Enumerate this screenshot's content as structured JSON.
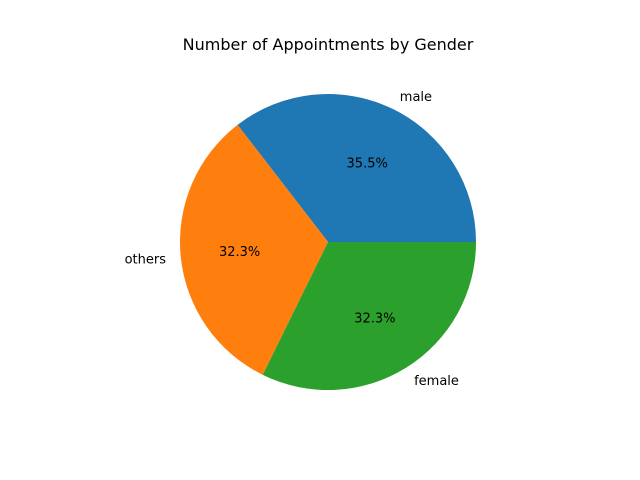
{
  "chart_data": {
    "type": "pie",
    "title": "Number of Appointments by Gender",
    "categories": [
      "male",
      "others",
      "female"
    ],
    "percentages": [
      35.5,
      32.3,
      32.3
    ],
    "percent_labels": [
      "35.5%",
      "32.3%",
      "32.3%"
    ],
    "colors": [
      "#1f77b4",
      "#ff7f0e",
      "#2ca02c"
    ],
    "start_angle_deg": 0,
    "direction": "counterclockwise",
    "legend": "none"
  }
}
